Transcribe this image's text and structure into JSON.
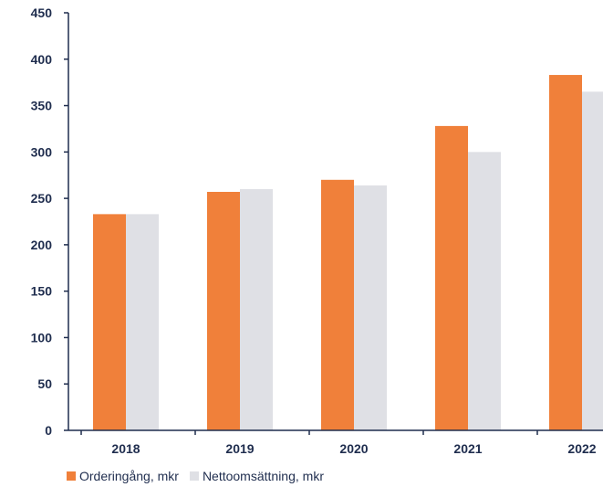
{
  "chart_data": {
    "type": "bar",
    "title": "",
    "xlabel": "",
    "ylabel": "",
    "ylim": [
      0,
      450
    ],
    "yticks": [
      "0",
      "50",
      "100",
      "150",
      "200",
      "250",
      "300",
      "350",
      "400",
      "450"
    ],
    "categories": [
      "2018",
      "2019",
      "2020",
      "2021",
      "2022"
    ],
    "series": [
      {
        "name": "Orderingång, mkr",
        "color": "#f0803a",
        "values": [
          233,
          257,
          270,
          328,
          383
        ]
      },
      {
        "name": "Nettoomsättning, mkr",
        "color": "#dfe0e5",
        "values": [
          233,
          260,
          264,
          300,
          365
        ]
      }
    ],
    "grid": false,
    "legend_position": "bottom-left"
  },
  "colors": {
    "axis": "#1f2d4e"
  }
}
